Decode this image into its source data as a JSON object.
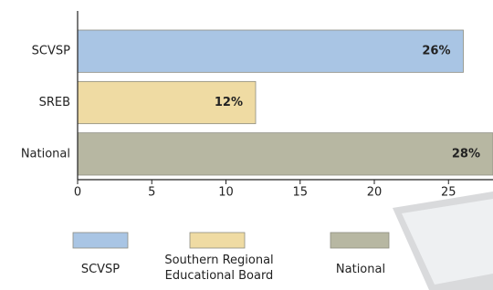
{
  "chart_data": {
    "type": "bar",
    "orientation": "horizontal",
    "categories": [
      "SCVSP",
      "SREB",
      "National"
    ],
    "series": [
      {
        "name": "SCVSP",
        "color": "#a9c5e4",
        "values": [
          26,
          null,
          null
        ],
        "value_labels": [
          "26%",
          null,
          null
        ]
      },
      {
        "name": "Southern Regional Educational Board",
        "color": "#efdba3",
        "values": [
          null,
          12,
          null
        ],
        "value_labels": [
          null,
          "12%",
          null
        ]
      },
      {
        "name": "National",
        "color": "#b7b7a2",
        "values": [
          null,
          null,
          28
        ],
        "value_labels": [
          null,
          null,
          "28%"
        ]
      }
    ],
    "xlim": [
      0,
      28
    ],
    "xticks": [
      0,
      5,
      10,
      15,
      20,
      25
    ],
    "legend": "bottom"
  }
}
